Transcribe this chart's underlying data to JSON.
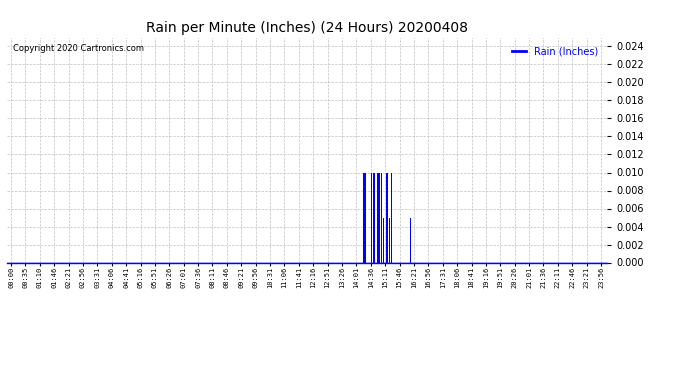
{
  "title": "Rain per Minute (Inches) (24 Hours) 20200408",
  "copyright": "Copyright 2020 Cartronics.com",
  "legend_label": "Rain (Inches)",
  "legend_color": "#0000ff",
  "title_color": "#000000",
  "copyright_color": "#000000",
  "background_color": "#ffffff",
  "plot_bg_color": "#ffffff",
  "grid_color": "#bbbbbb",
  "bar_color": "#0000ff",
  "axis_line_color": "#0000ff",
  "ylim": [
    0.0,
    0.025
  ],
  "yticks": [
    0.0,
    0.002,
    0.004,
    0.006,
    0.008,
    0.01,
    0.012,
    0.014,
    0.016,
    0.018,
    0.02,
    0.022,
    0.024
  ],
  "total_minutes": 1440,
  "rain_events": [
    {
      "minute": 851,
      "value": 0.005
    },
    {
      "minute": 856,
      "value": 0.01
    },
    {
      "minute": 857,
      "value": 0.01
    },
    {
      "minute": 858,
      "value": 0.01
    },
    {
      "minute": 859,
      "value": 0.01
    },
    {
      "minute": 860,
      "value": 0.01
    },
    {
      "minute": 861,
      "value": 0.01
    },
    {
      "minute": 862,
      "value": 0.01
    },
    {
      "minute": 863,
      "value": 0.01
    },
    {
      "minute": 864,
      "value": 0.005
    },
    {
      "minute": 870,
      "value": 0.005
    },
    {
      "minute": 876,
      "value": 0.01
    },
    {
      "minute": 877,
      "value": 0.01
    },
    {
      "minute": 878,
      "value": 0.01
    },
    {
      "minute": 881,
      "value": 0.01
    },
    {
      "minute": 882,
      "value": 0.01
    },
    {
      "minute": 883,
      "value": 0.01
    },
    {
      "minute": 884,
      "value": 0.01
    },
    {
      "minute": 891,
      "value": 0.01
    },
    {
      "minute": 892,
      "value": 0.01
    },
    {
      "minute": 893,
      "value": 0.01
    },
    {
      "minute": 894,
      "value": 0.01
    },
    {
      "minute": 895,
      "value": 0.01
    },
    {
      "minute": 896,
      "value": 0.01
    },
    {
      "minute": 897,
      "value": 0.005
    },
    {
      "minute": 900,
      "value": 0.01
    },
    {
      "minute": 901,
      "value": 0.01
    },
    {
      "minute": 902,
      "value": 0.01
    },
    {
      "minute": 906,
      "value": 0.005
    },
    {
      "minute": 907,
      "value": 0.01
    },
    {
      "minute": 912,
      "value": 0.01
    },
    {
      "minute": 913,
      "value": 0.01
    },
    {
      "minute": 914,
      "value": 0.01
    },
    {
      "minute": 915,
      "value": 0.01
    },
    {
      "minute": 916,
      "value": 0.01
    },
    {
      "minute": 917,
      "value": 0.005
    },
    {
      "minute": 921,
      "value": 0.005
    },
    {
      "minute": 925,
      "value": 0.01
    },
    {
      "minute": 926,
      "value": 0.005
    },
    {
      "minute": 932,
      "value": 0.005
    },
    {
      "minute": 960,
      "value": 0.005
    },
    {
      "minute": 966,
      "value": 0.005
    },
    {
      "minute": 972,
      "value": 0.005
    },
    {
      "minute": 978,
      "value": 0.005
    }
  ],
  "x_tick_minutes": [
    0,
    35,
    70,
    105,
    140,
    175,
    210,
    245,
    280,
    315,
    350,
    385,
    420,
    455,
    490,
    525,
    560,
    595,
    630,
    665,
    700,
    735,
    770,
    805,
    840,
    875,
    910,
    945,
    980,
    1015,
    1050,
    1085,
    1120,
    1155,
    1190,
    1225,
    1260,
    1295,
    1330,
    1365,
    1400,
    1435
  ],
  "x_tick_labels": [
    "00:00",
    "00:35",
    "01:10",
    "01:46",
    "02:21",
    "02:56",
    "03:31",
    "04:06",
    "04:41",
    "05:16",
    "05:51",
    "06:26",
    "07:01",
    "07:36",
    "08:11",
    "08:46",
    "09:21",
    "09:56",
    "10:31",
    "11:06",
    "11:41",
    "12:16",
    "12:51",
    "13:26",
    "14:01",
    "14:36",
    "15:11",
    "15:46",
    "16:21",
    "16:56",
    "17:31",
    "18:06",
    "18:41",
    "19:16",
    "19:51",
    "20:26",
    "21:01",
    "21:36",
    "22:11",
    "22:46",
    "23:21",
    "23:56"
  ]
}
